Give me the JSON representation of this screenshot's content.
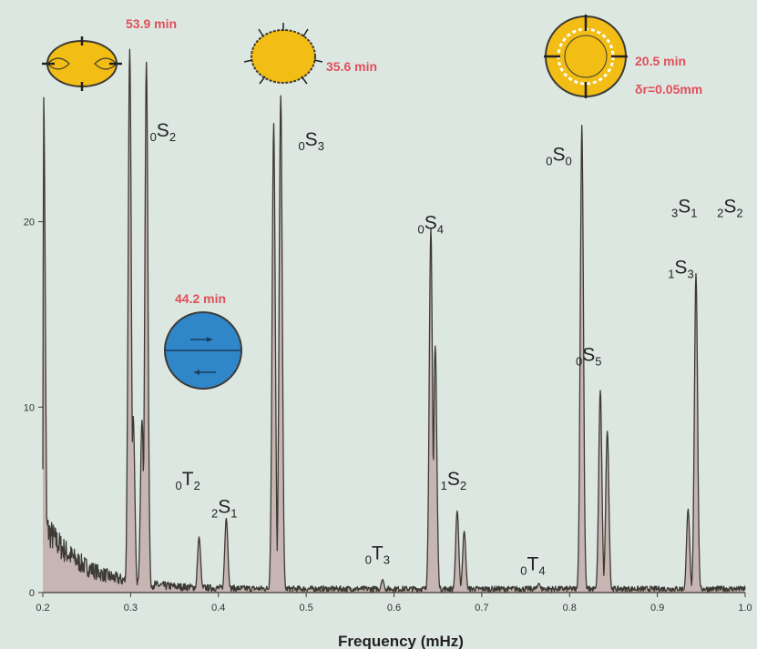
{
  "chart_data": {
    "type": "area",
    "title": "",
    "xlabel": "Frequency (mHz)",
    "ylabel": "",
    "xlim": [
      0.2,
      1.0
    ],
    "ylim": [
      0,
      27
    ],
    "x_ticks": [
      0.2,
      0.3,
      0.4,
      0.5,
      0.6,
      0.7,
      0.8,
      0.9,
      1.0
    ],
    "x_tick_labels": [
      "0.2",
      "0.3",
      "0.4",
      "0.5",
      "0.6",
      "0.7",
      "0.8",
      "0.9",
      "1.0"
    ],
    "y_ticks": [
      0,
      10,
      20
    ],
    "y_tick_labels": [
      "0",
      "10",
      "20"
    ],
    "grid": false,
    "line_color": "#3d3a34",
    "fill_color": "#c6b5b3",
    "peaks": [
      {
        "x": 0.201,
        "y": 26.7
      },
      {
        "x": 0.299,
        "y": 29.3
      },
      {
        "x": 0.303,
        "y": 9.5
      },
      {
        "x": 0.313,
        "y": 9.3
      },
      {
        "x": 0.318,
        "y": 28.6
      },
      {
        "x": 0.378,
        "y": 3.0
      },
      {
        "x": 0.409,
        "y": 4.0
      },
      {
        "x": 0.463,
        "y": 25.3
      },
      {
        "x": 0.471,
        "y": 26.8
      },
      {
        "x": 0.587,
        "y": 0.7
      },
      {
        "x": 0.642,
        "y": 19.6
      },
      {
        "x": 0.647,
        "y": 13.3
      },
      {
        "x": 0.672,
        "y": 4.4
      },
      {
        "x": 0.68,
        "y": 3.3
      },
      {
        "x": 0.765,
        "y": 0.5
      },
      {
        "x": 0.814,
        "y": 25.2
      },
      {
        "x": 0.835,
        "y": 10.9
      },
      {
        "x": 0.843,
        "y": 8.7
      },
      {
        "x": 0.935,
        "y": 4.5
      },
      {
        "x": 0.944,
        "y": 17.2
      }
    ],
    "mode_labels": [
      {
        "pre": "0",
        "main": "S",
        "sub": "2",
        "x": 0.322,
        "y": 24.6
      },
      {
        "pre": "0",
        "main": "S",
        "sub": "3",
        "x": 0.491,
        "y": 24.1
      },
      {
        "pre": "0",
        "main": "S",
        "sub": "4",
        "x": 0.627,
        "y": 19.6
      },
      {
        "pre": "0",
        "main": "S",
        "sub": "0",
        "x": 0.773,
        "y": 23.3
      },
      {
        "pre": "3",
        "main": "S",
        "sub": "1",
        "x": 0.916,
        "y": 20.5
      },
      {
        "pre": "2",
        "main": "S",
        "sub": "2",
        "x": 0.968,
        "y": 20.5
      },
      {
        "pre": "1",
        "main": "S",
        "sub": "3",
        "x": 0.912,
        "y": 17.2
      },
      {
        "pre": "0",
        "main": "S",
        "sub": "5",
        "x": 0.807,
        "y": 12.5
      },
      {
        "pre": "1",
        "main": "S",
        "sub": "2",
        "x": 0.653,
        "y": 5.8
      },
      {
        "pre": "0",
        "main": "T",
        "sub": "2",
        "x": 0.351,
        "y": 5.8
      },
      {
        "pre": "2",
        "main": "S",
        "sub": "1",
        "x": 0.392,
        "y": 4.3
      },
      {
        "pre": "0",
        "main": "T",
        "sub": "3",
        "x": 0.567,
        "y": 1.8
      },
      {
        "pre": "0",
        "main": "T",
        "sub": "4",
        "x": 0.744,
        "y": 1.2
      }
    ],
    "annotations": [
      {
        "text": "53.9 min",
        "color": "#e04f58"
      },
      {
        "text": "35.6  min",
        "color": "#e04f58"
      },
      {
        "text": "44.2  min",
        "color": "#e04f58"
      },
      {
        "text": "20.5  min",
        "color": "#e04f58"
      },
      {
        "text": "δr=0.05mm",
        "color": "#e04f58"
      }
    ],
    "colors": {
      "background": "#dde7e2",
      "mode_icon_yellow": "#f2bd14",
      "mode_icon_blue": "#2f86c8",
      "annotation_red": "#e04f58"
    }
  }
}
